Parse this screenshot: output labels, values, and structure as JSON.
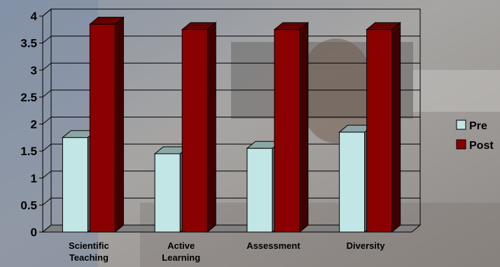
{
  "chart_data": {
    "type": "bar",
    "categories": [
      [
        "Scientific",
        "Teaching"
      ],
      [
        "Active",
        "Learning"
      ],
      [
        "Assessment"
      ],
      [
        "Diversity"
      ]
    ],
    "series": [
      {
        "name": "Pre",
        "values": [
          1.75,
          1.45,
          1.55,
          1.85
        ],
        "color": "#c2e6e6"
      },
      {
        "name": "Post",
        "values": [
          3.85,
          3.75,
          3.75,
          3.75
        ],
        "color": "#8b0000"
      }
    ],
    "ylim": [
      0,
      4
    ],
    "yticks": [
      "0",
      "0.5",
      "1",
      "1.5",
      "2",
      "2.5",
      "3",
      "3.5",
      "4"
    ],
    "grid": true,
    "legend_position": "right",
    "style": "3d-clustered-column",
    "background": "photo of classroom"
  }
}
